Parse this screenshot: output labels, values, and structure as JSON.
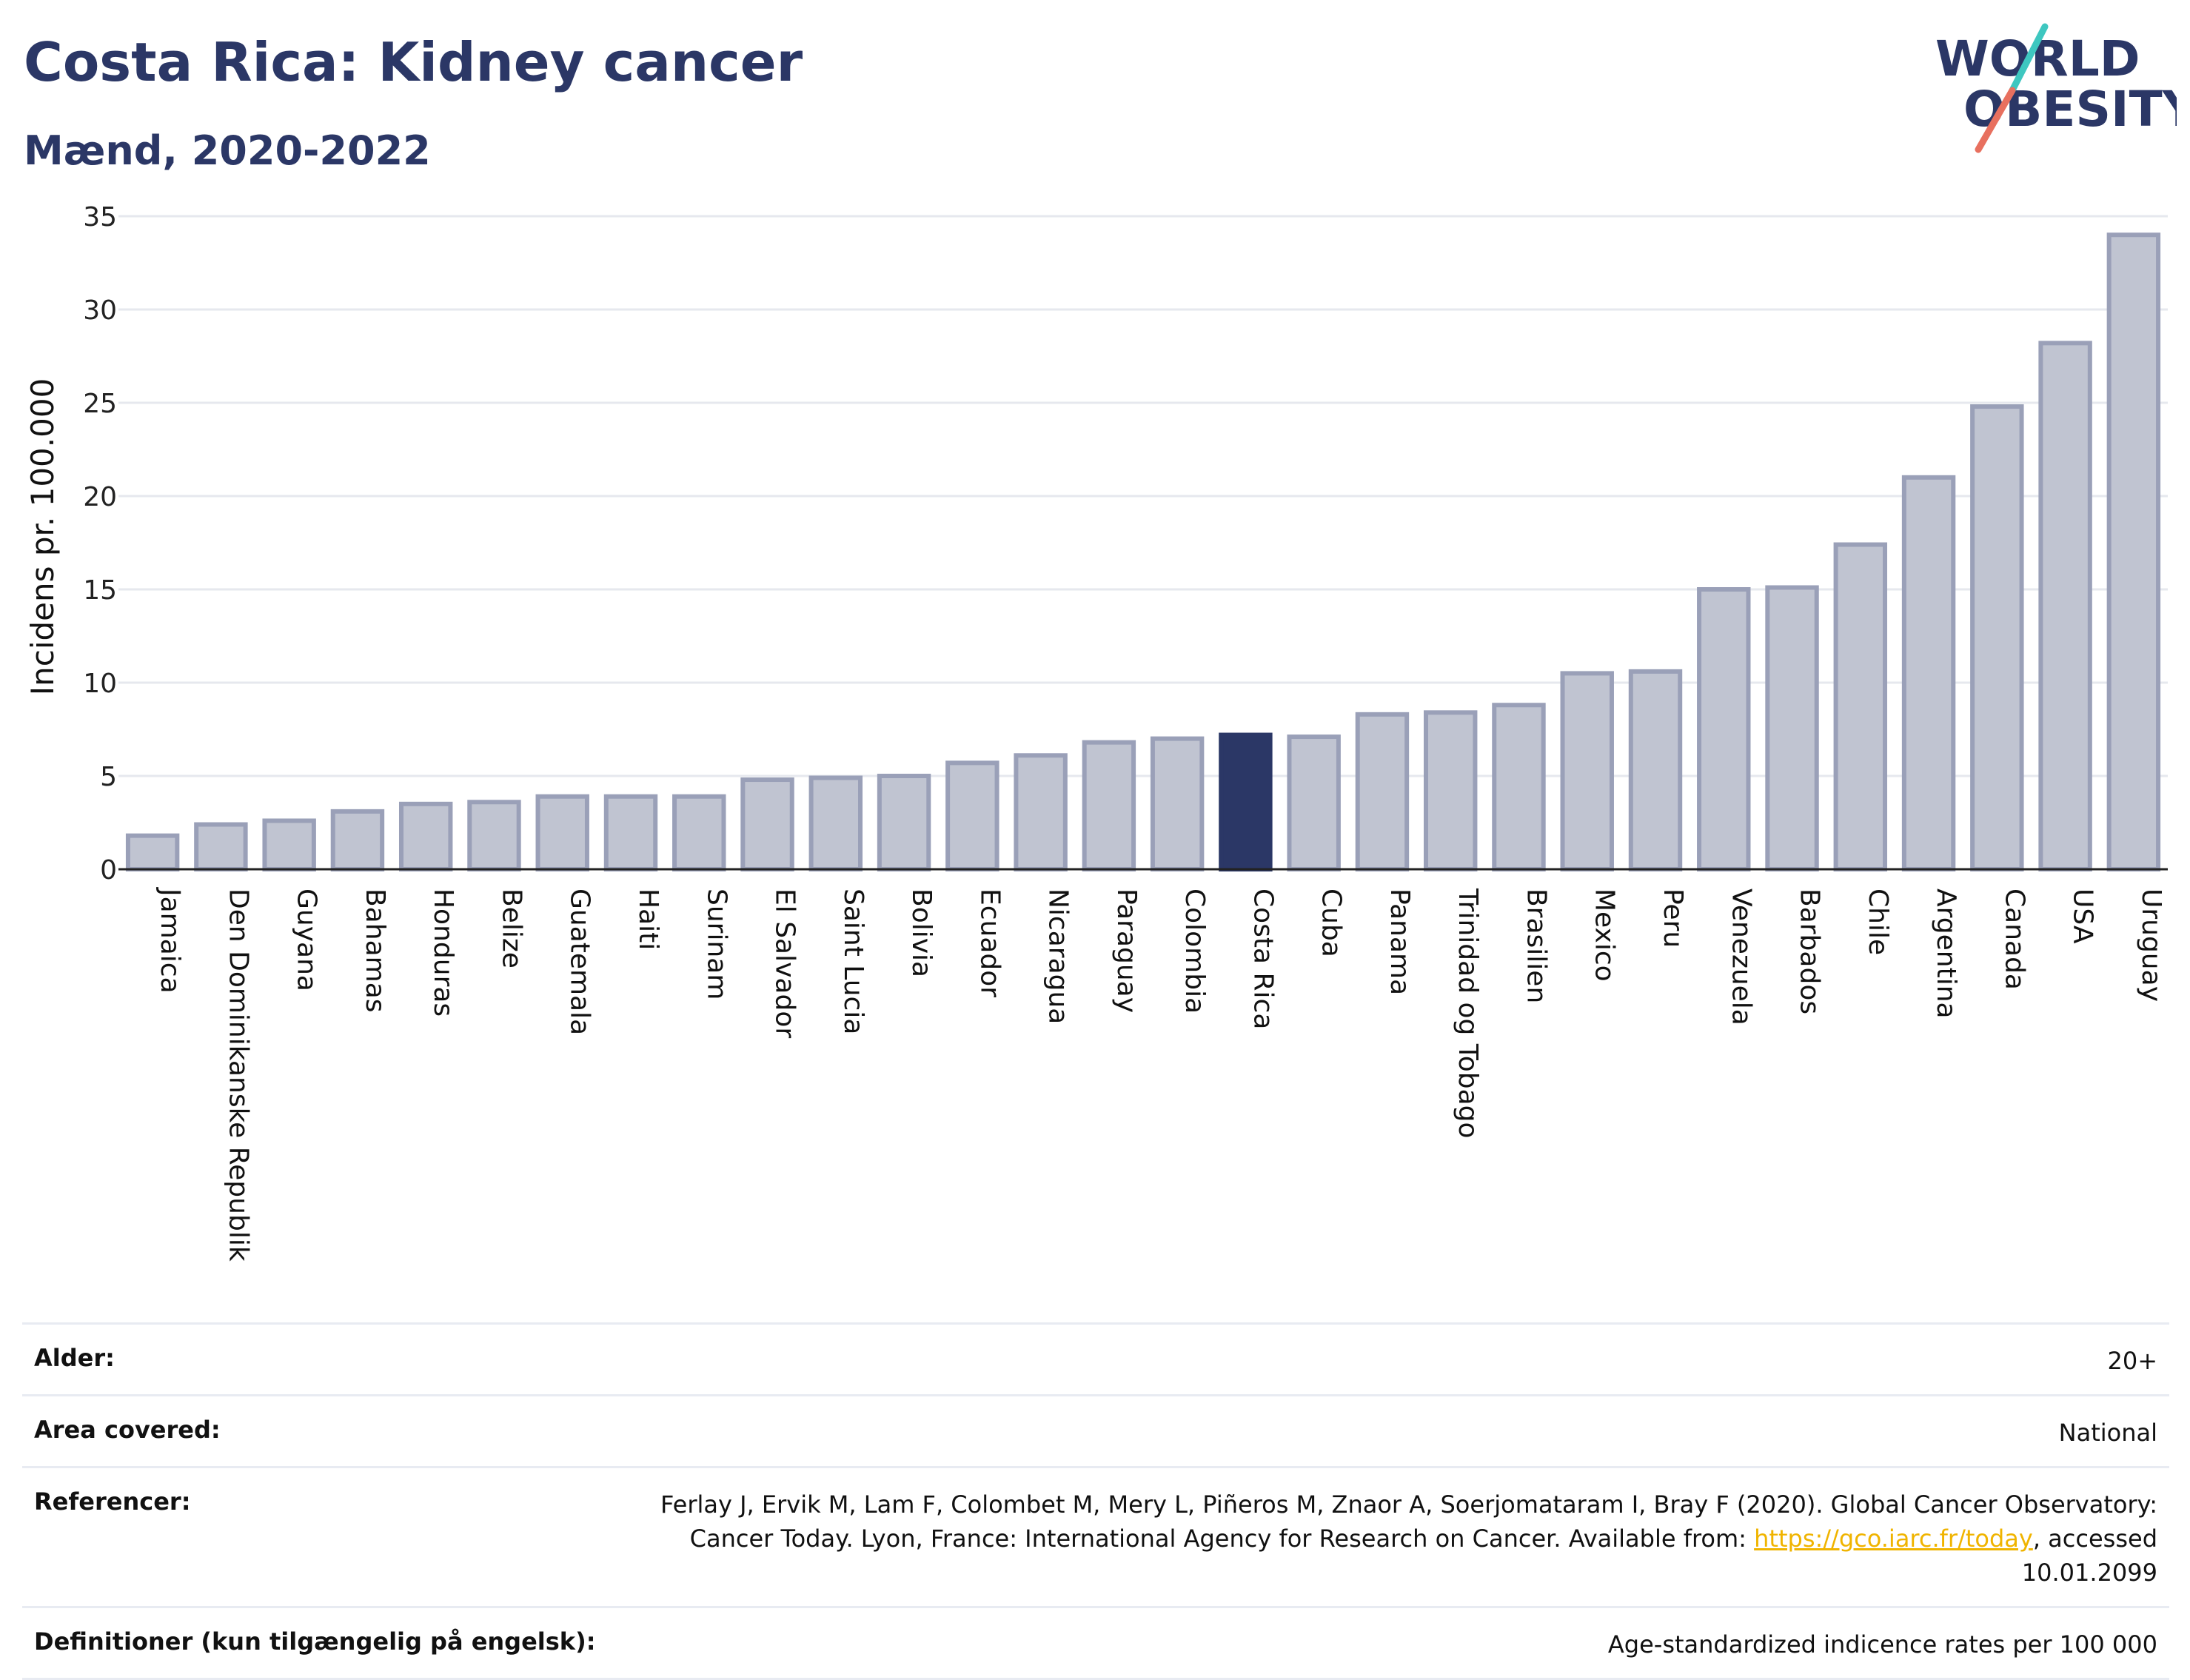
{
  "header": {
    "title": "Costa Rica: Kidney cancer",
    "subtitle": "Mænd, 2020-2022"
  },
  "logo": {
    "line1": "WORLD",
    "line2": "OBESITY",
    "colors": {
      "text": "#2b3766",
      "slash_top": "#3ec7c0",
      "slash_bottom": "#e8705f"
    }
  },
  "colors": {
    "bar": "#c0c4d1",
    "bar_border": "#9aa0b8",
    "highlight": "#2b3766",
    "grid": "#e6e8ee",
    "axis": "#222222"
  },
  "chart_data": {
    "type": "bar",
    "title": "",
    "xlabel": "",
    "ylabel": "Incidens pr. 100.000",
    "ylim": [
      0,
      35
    ],
    "yticks": [
      0,
      5,
      10,
      15,
      20,
      25,
      30,
      35
    ],
    "grid": true,
    "highlight": "Costa Rica",
    "categories": [
      "Jamaica",
      "Den Dominikanske Republik",
      "Guyana",
      "Bahamas",
      "Honduras",
      "Belize",
      "Guatemala",
      "Haiti",
      "Surinam",
      "El Salvador",
      "Saint Lucia",
      "Bolivia",
      "Ecuador",
      "Nicaragua",
      "Paraguay",
      "Colombia",
      "Costa Rica",
      "Cuba",
      "Panama",
      "Trinidad og Tobago",
      "Brasilien",
      "Mexico",
      "Peru",
      "Venezuela",
      "Barbados",
      "Chile",
      "Argentina",
      "Canada",
      "USA",
      "Uruguay"
    ],
    "values": [
      1.8,
      2.4,
      2.6,
      3.1,
      3.5,
      3.6,
      3.9,
      3.9,
      3.9,
      4.8,
      4.9,
      5.0,
      5.7,
      6.1,
      6.8,
      7.0,
      7.2,
      7.1,
      8.3,
      8.4,
      8.8,
      10.5,
      10.6,
      15.0,
      15.1,
      17.4,
      21.0,
      24.8,
      28.2,
      34.0
    ]
  },
  "meta": {
    "rows": [
      {
        "label": "Alder:",
        "value": "20+"
      },
      {
        "label": "Area covered:",
        "value": "National"
      },
      {
        "label": "Referencer:",
        "value_before": "Ferlay J, Ervik M, Lam F, Colombet M, Mery L, Piñeros M, Znaor A, Soerjomataram I, Bray F (2020). Global Cancer Observatory: Cancer Today. Lyon, France: International Agency for Research on Cancer. Available from: ",
        "link": "https://gco.iarc.fr/today",
        "value_after": ", accessed 10.01.2099"
      },
      {
        "label": "Definitioner (kun tilgængelig på engelsk):",
        "value": "Age-standardized indicence rates per 100 000"
      }
    ]
  }
}
